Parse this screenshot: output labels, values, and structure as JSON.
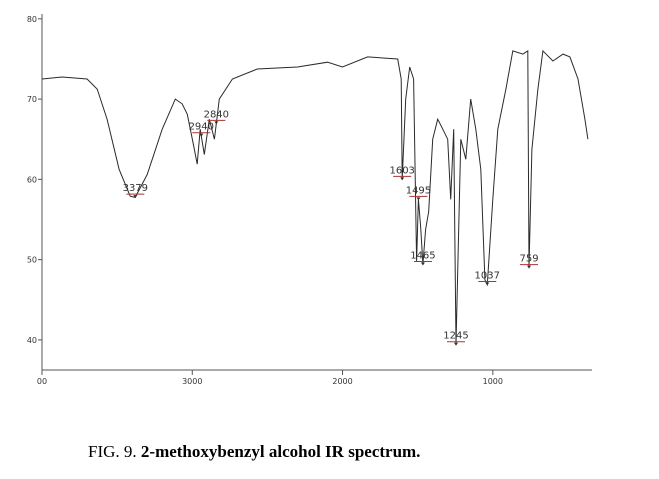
{
  "chart_data": {
    "type": "line",
    "caption_label": "FIG. 9.",
    "caption_text": "2-methoxybenzyl alcohol IR spectrum.",
    "xlim": [
      4000,
      340
    ],
    "ylim": [
      36.25,
      80.6
    ],
    "xticks": [
      {
        "value": 4000,
        "label": "00"
      },
      3000,
      2000,
      1000
    ],
    "yticks": [
      40,
      50,
      60,
      70,
      80
    ],
    "x": [
      4000,
      3867,
      3700,
      3633,
      3567,
      3487,
      3413,
      3380,
      3300,
      3200,
      3113,
      3067,
      3033,
      2993,
      2967,
      2947,
      2920,
      2887,
      2853,
      2820,
      2733,
      2567,
      2300,
      2100,
      2000,
      1833,
      1633,
      1610,
      1603,
      1580,
      1553,
      1527,
      1507,
      1495,
      1480,
      1465,
      1447,
      1427,
      1400,
      1367,
      1333,
      1300,
      1280,
      1260,
      1245,
      1213,
      1180,
      1147,
      1113,
      1080,
      1053,
      1037,
      1000,
      967,
      913,
      867,
      800,
      767,
      759,
      740,
      700,
      667,
      600,
      533,
      487,
      433,
      387,
      367
    ],
    "series": [
      {
        "color": "#2a2a2a",
        "values": [
          72.5,
          72.75,
          72.5,
          71.25,
          67.5,
          61.25,
          57.9,
          57.75,
          60.6,
          66.25,
          70,
          69.4,
          68.1,
          64.4,
          61.9,
          66.25,
          63.1,
          67.5,
          65,
          70,
          72.5,
          73.75,
          74,
          74.6,
          74,
          75.25,
          75,
          72.5,
          60,
          70,
          74,
          72.5,
          49.8,
          57.5,
          54,
          49.4,
          53.75,
          56,
          65,
          67.5,
          66.25,
          65,
          57.5,
          66.25,
          39.4,
          65,
          62.5,
          70,
          66.25,
          61.25,
          47.5,
          46.9,
          57.5,
          66.25,
          71.25,
          76,
          75.6,
          76,
          49,
          63.75,
          71.25,
          76,
          74.75,
          75.6,
          75.25,
          72.5,
          67.5,
          65
        ]
      }
    ],
    "peaks": [
      3379,
      2940,
      2840,
      1603,
      1495,
      1465,
      1245,
      1037,
      759
    ]
  }
}
